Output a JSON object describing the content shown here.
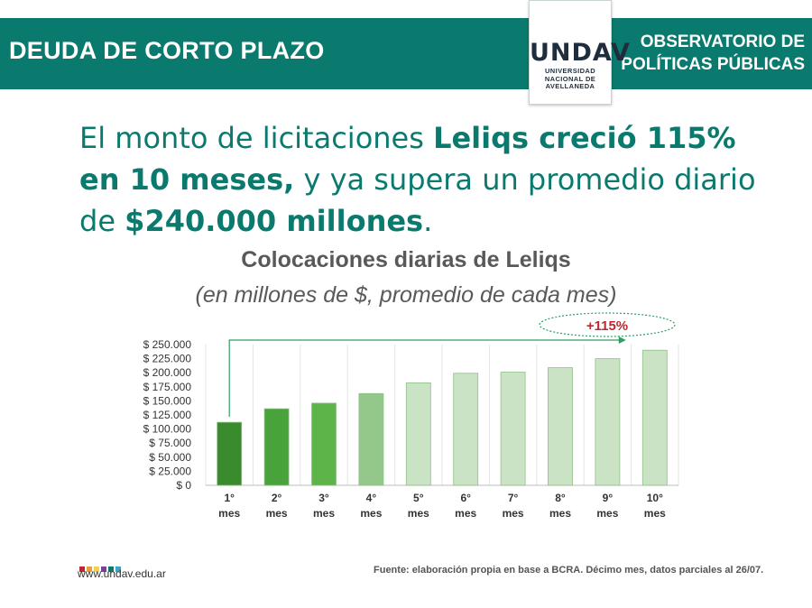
{
  "header": {
    "title": "DEUDA DE CORTO PLAZO",
    "right_line1": "OBSERVATORIO DE",
    "right_line2": "POLÍTICAS PÚBLICAS",
    "logo_mark": "UNDAV",
    "logo_line1": "UNIVERSIDAD",
    "logo_line2": "NACIONAL DE",
    "logo_line3": "AVELLANEDA"
  },
  "headline": {
    "p1": "El monto de licitaciones ",
    "b1": "Leliqs creció 115% en 10 meses,",
    "p2": " y ya supera un promedio diario de ",
    "b2": "$240.000 millones",
    "p3": "."
  },
  "footer": {
    "url": "www.undav.edu.ar",
    "source": "Fuente: elaboración propia en base a BCRA. Décimo mes, datos parciales al 26/07.",
    "dot_colors": [
      "#c0262d",
      "#e8a03a",
      "#f3d34a",
      "#7a3f96",
      "#0b7a6e",
      "#3aa7c9"
    ]
  },
  "chart_data": {
    "type": "bar",
    "title": "Colocaciones diarias de Leliqs",
    "subtitle": "(en millones de $, promedio de cada mes)",
    "categories": [
      "1° mes",
      "2° mes",
      "3° mes",
      "4° mes",
      "5° mes",
      "6° mes",
      "7° mes",
      "8° mes",
      "9° mes",
      "10° mes"
    ],
    "values": [
      112000,
      136000,
      146000,
      163000,
      182000,
      199000,
      201000,
      209000,
      225000,
      240000
    ],
    "bar_colors": [
      "#3a8a2e",
      "#48a33a",
      "#5db54a",
      "#93c88a",
      "#c9e3c4",
      "#c9e3c4",
      "#c9e3c4",
      "#c9e3c4",
      "#c9e3c4",
      "#c9e3c4"
    ],
    "bar_stroke": "#8fbf87",
    "ylim": [
      0,
      250000
    ],
    "yticks": [
      "$ 0",
      "$ 25.000",
      "$ 50.000",
      "$ 75.000",
      "$ 100.000",
      "$ 125.000",
      "$ 150.000",
      "$ 175.000",
      "$ 200.000",
      "$ 225.000",
      "$ 250.000"
    ],
    "ytick_values": [
      0,
      25000,
      50000,
      75000,
      100000,
      125000,
      150000,
      175000,
      200000,
      225000,
      250000
    ],
    "annotation": "+115%",
    "arrow_color": "#2e9e63",
    "grid": true,
    "xlabel": "",
    "ylabel": ""
  }
}
